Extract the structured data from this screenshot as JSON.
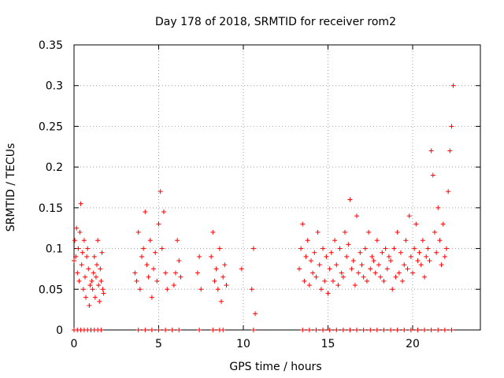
{
  "chart_data": {
    "type": "scatter",
    "title": "Day 178 of 2018, SRMTID for receiver rom2",
    "xlabel": "GPS time / hours",
    "ylabel": "SRMTID / TECUs",
    "xlim": [
      0,
      24
    ],
    "ylim": [
      0,
      0.35
    ],
    "xticks": [
      0,
      5,
      10,
      15,
      20
    ],
    "xtick_labels": [
      "0",
      "5",
      "10",
      "15",
      "20"
    ],
    "yticks": [
      0,
      0.05,
      0.1,
      0.15,
      0.2,
      0.25,
      0.3,
      0.35
    ],
    "ytick_labels": [
      "0",
      "0.05",
      "0.1",
      "0.15",
      "0.2",
      "0.25",
      "0.3",
      "0.35"
    ],
    "grid": true,
    "marker": "+",
    "series": [
      {
        "name": "SRMTID",
        "color": "#ff0000",
        "x": [
          0.0,
          0.05,
          0.1,
          0.15,
          0.2,
          0.25,
          0.3,
          0.35,
          0.4,
          0.45,
          0.5,
          0.55,
          0.6,
          0.65,
          0.7,
          0.75,
          0.8,
          0.85,
          0.9,
          0.95,
          1.05,
          1.1,
          1.15,
          1.2,
          1.25,
          1.3,
          1.35,
          1.4,
          1.45,
          1.5,
          1.55,
          1.6,
          1.65,
          1.7,
          1.75,
          3.6,
          3.7,
          3.8,
          3.9,
          4.0,
          4.1,
          4.2,
          4.3,
          4.4,
          4.5,
          4.6,
          4.7,
          4.8,
          4.9,
          5.0,
          5.1,
          5.2,
          5.3,
          5.4,
          5.5,
          5.9,
          6.0,
          6.1,
          6.2,
          6.3,
          7.3,
          7.4,
          7.5,
          8.1,
          8.2,
          8.3,
          8.4,
          8.5,
          8.6,
          8.7,
          8.8,
          8.9,
          9.0,
          9.9,
          10.5,
          10.6,
          10.7,
          13.3,
          13.4,
          13.5,
          13.6,
          13.7,
          13.8,
          13.9,
          14.0,
          14.1,
          14.2,
          14.3,
          14.4,
          14.5,
          14.6,
          14.7,
          14.8,
          14.9,
          15.0,
          15.1,
          15.2,
          15.3,
          15.4,
          15.5,
          15.6,
          15.7,
          15.8,
          15.9,
          16.0,
          16.1,
          16.2,
          16.3,
          16.4,
          16.5,
          16.6,
          16.7,
          16.8,
          16.9,
          17.0,
          17.1,
          17.2,
          17.3,
          17.4,
          17.5,
          17.6,
          17.7,
          17.8,
          17.9,
          18.0,
          18.1,
          18.2,
          18.3,
          18.4,
          18.5,
          18.6,
          18.7,
          18.8,
          18.9,
          19.0,
          19.1,
          19.2,
          19.3,
          19.4,
          19.5,
          19.6,
          19.7,
          19.8,
          19.9,
          20.0,
          20.1,
          20.2,
          20.3,
          20.4,
          20.5,
          20.6,
          20.7,
          20.8,
          20.9,
          21.0,
          21.1,
          21.2,
          21.3,
          21.4,
          21.5,
          21.6,
          21.7,
          21.8,
          21.9,
          22.0,
          22.1,
          22.2,
          22.3,
          22.4,
          0.0,
          0.2,
          0.4,
          0.6,
          0.8,
          1.0,
          1.2,
          1.4,
          1.6,
          3.8,
          4.2,
          4.6,
          5.0,
          5.4,
          5.8,
          6.2,
          7.4,
          8.2,
          8.6,
          8.8,
          10.6,
          13.5,
          13.9,
          14.3,
          14.7,
          15.1,
          15.5,
          15.9,
          16.3,
          16.7,
          17.1,
          17.5,
          17.9,
          18.3,
          18.7,
          19.1,
          19.5,
          19.9,
          20.3,
          20.7,
          21.1,
          21.5,
          21.9,
          22.3
        ],
        "y": [
          0.085,
          0.11,
          0.09,
          0.125,
          0.07,
          0.1,
          0.06,
          0.12,
          0.155,
          0.08,
          0.095,
          0.05,
          0.11,
          0.065,
          0.04,
          0.09,
          0.1,
          0.075,
          0.03,
          0.055,
          0.06,
          0.05,
          0.07,
          0.09,
          0.04,
          0.065,
          0.08,
          0.11,
          0.055,
          0.035,
          0.075,
          0.06,
          0.095,
          0.05,
          0.045,
          0.07,
          0.06,
          0.12,
          0.05,
          0.09,
          0.1,
          0.145,
          0.08,
          0.065,
          0.11,
          0.04,
          0.075,
          0.095,
          0.06,
          0.13,
          0.17,
          0.1,
          0.145,
          0.07,
          0.05,
          0.055,
          0.07,
          0.11,
          0.085,
          0.065,
          0.07,
          0.09,
          0.05,
          0.09,
          0.12,
          0.06,
          0.075,
          0.05,
          0.1,
          0.035,
          0.065,
          0.08,
          0.055,
          0.075,
          0.05,
          0.1,
          0.02,
          0.075,
          0.1,
          0.13,
          0.06,
          0.09,
          0.11,
          0.055,
          0.085,
          0.07,
          0.095,
          0.065,
          0.12,
          0.08,
          0.05,
          0.1,
          0.06,
          0.09,
          0.045,
          0.075,
          0.095,
          0.06,
          0.11,
          0.08,
          0.055,
          0.1,
          0.07,
          0.065,
          0.12,
          0.09,
          0.105,
          0.16,
          0.075,
          0.085,
          0.055,
          0.14,
          0.07,
          0.095,
          0.08,
          0.065,
          0.1,
          0.06,
          0.12,
          0.075,
          0.09,
          0.085,
          0.07,
          0.11,
          0.08,
          0.065,
          0.095,
          0.06,
          0.1,
          0.075,
          0.09,
          0.085,
          0.05,
          0.1,
          0.065,
          0.12,
          0.07,
          0.095,
          0.06,
          0.08,
          0.11,
          0.075,
          0.14,
          0.09,
          0.07,
          0.1,
          0.13,
          0.085,
          0.095,
          0.08,
          0.11,
          0.065,
          0.09,
          0.1,
          0.085,
          0.22,
          0.19,
          0.12,
          0.095,
          0.15,
          0.11,
          0.08,
          0.13,
          0.09,
          0.1,
          0.17,
          0.22,
          0.25,
          0.3,
          0.0,
          0.0,
          0.0,
          0.0,
          0.0,
          0.0,
          0.0,
          0.0,
          0.0,
          0.0,
          0.0,
          0.0,
          0.0,
          0.0,
          0.0,
          0.0,
          0.0,
          0.0,
          0.0,
          0.0,
          0.0,
          0.0,
          0.0,
          0.0,
          0.0,
          0.0,
          0.0,
          0.0,
          0.0,
          0.0,
          0.0,
          0.0,
          0.0,
          0.0,
          0.0,
          0.0,
          0.0,
          0.0,
          0.0,
          0.0,
          0.0,
          0.0,
          0.0,
          0.0
        ]
      }
    ]
  }
}
